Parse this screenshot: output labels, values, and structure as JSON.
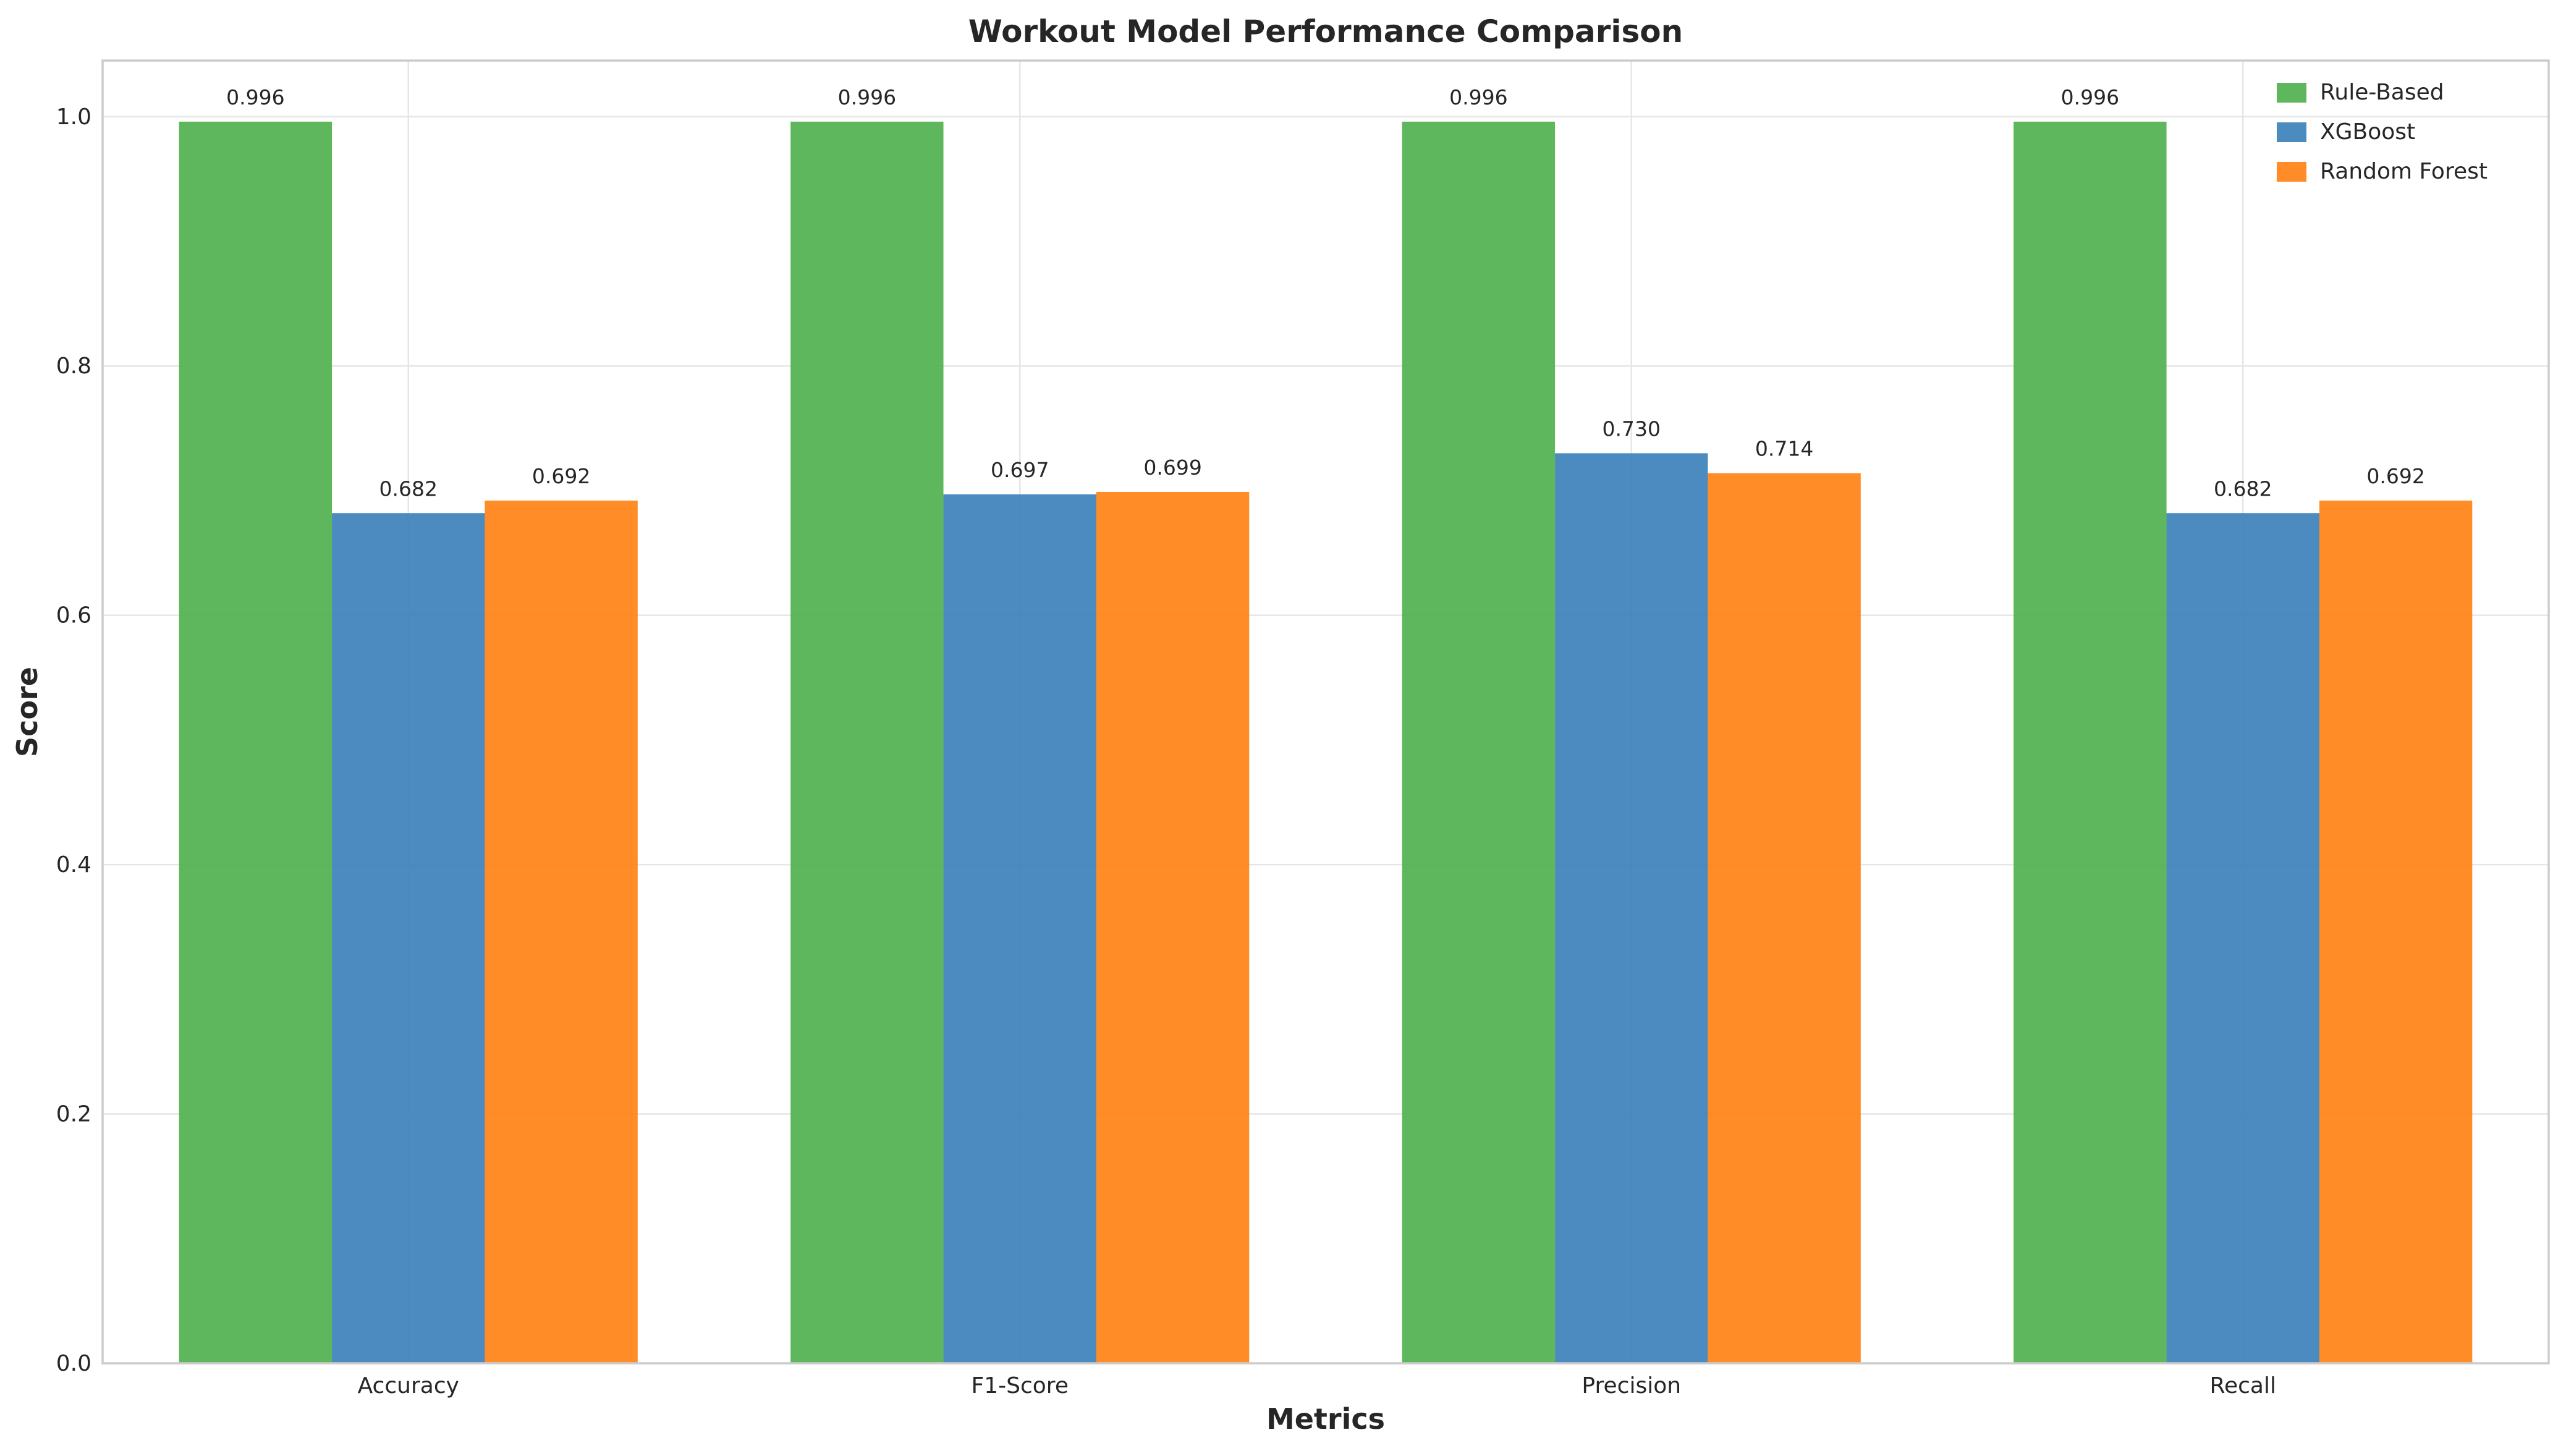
{
  "chart_data": {
    "type": "bar",
    "title": "Workout Model Performance Comparison",
    "xlabel": "Metrics",
    "ylabel": "Score",
    "categories": [
      "Accuracy",
      "F1-Score",
      "Precision",
      "Recall"
    ],
    "series": [
      {
        "name": "Rule-Based",
        "color": "#4daf4a",
        "values": [
          0.996,
          0.996,
          0.996,
          0.996
        ],
        "labels": [
          "0.996",
          "0.996",
          "0.996",
          "0.996"
        ]
      },
      {
        "name": "XGBoost",
        "color": "#377eb8",
        "values": [
          0.682,
          0.697,
          0.73,
          0.682
        ],
        "labels": [
          "0.682",
          "0.697",
          "0.730",
          "0.682"
        ]
      },
      {
        "name": "Random Forest",
        "color": "#ff7f0e",
        "values": [
          0.692,
          0.699,
          0.714,
          0.692
        ],
        "labels": [
          "0.692",
          "0.699",
          "0.714",
          "0.692"
        ]
      }
    ],
    "ylim": [
      0,
      1.045
    ],
    "yticks": [
      0.0,
      0.2,
      0.4,
      0.6,
      0.8,
      1.0
    ],
    "ytick_labels": [
      "0.0",
      "0.2",
      "0.4",
      "0.6",
      "0.8",
      "1.0"
    ],
    "grid": true,
    "legend_position": "top-right"
  }
}
